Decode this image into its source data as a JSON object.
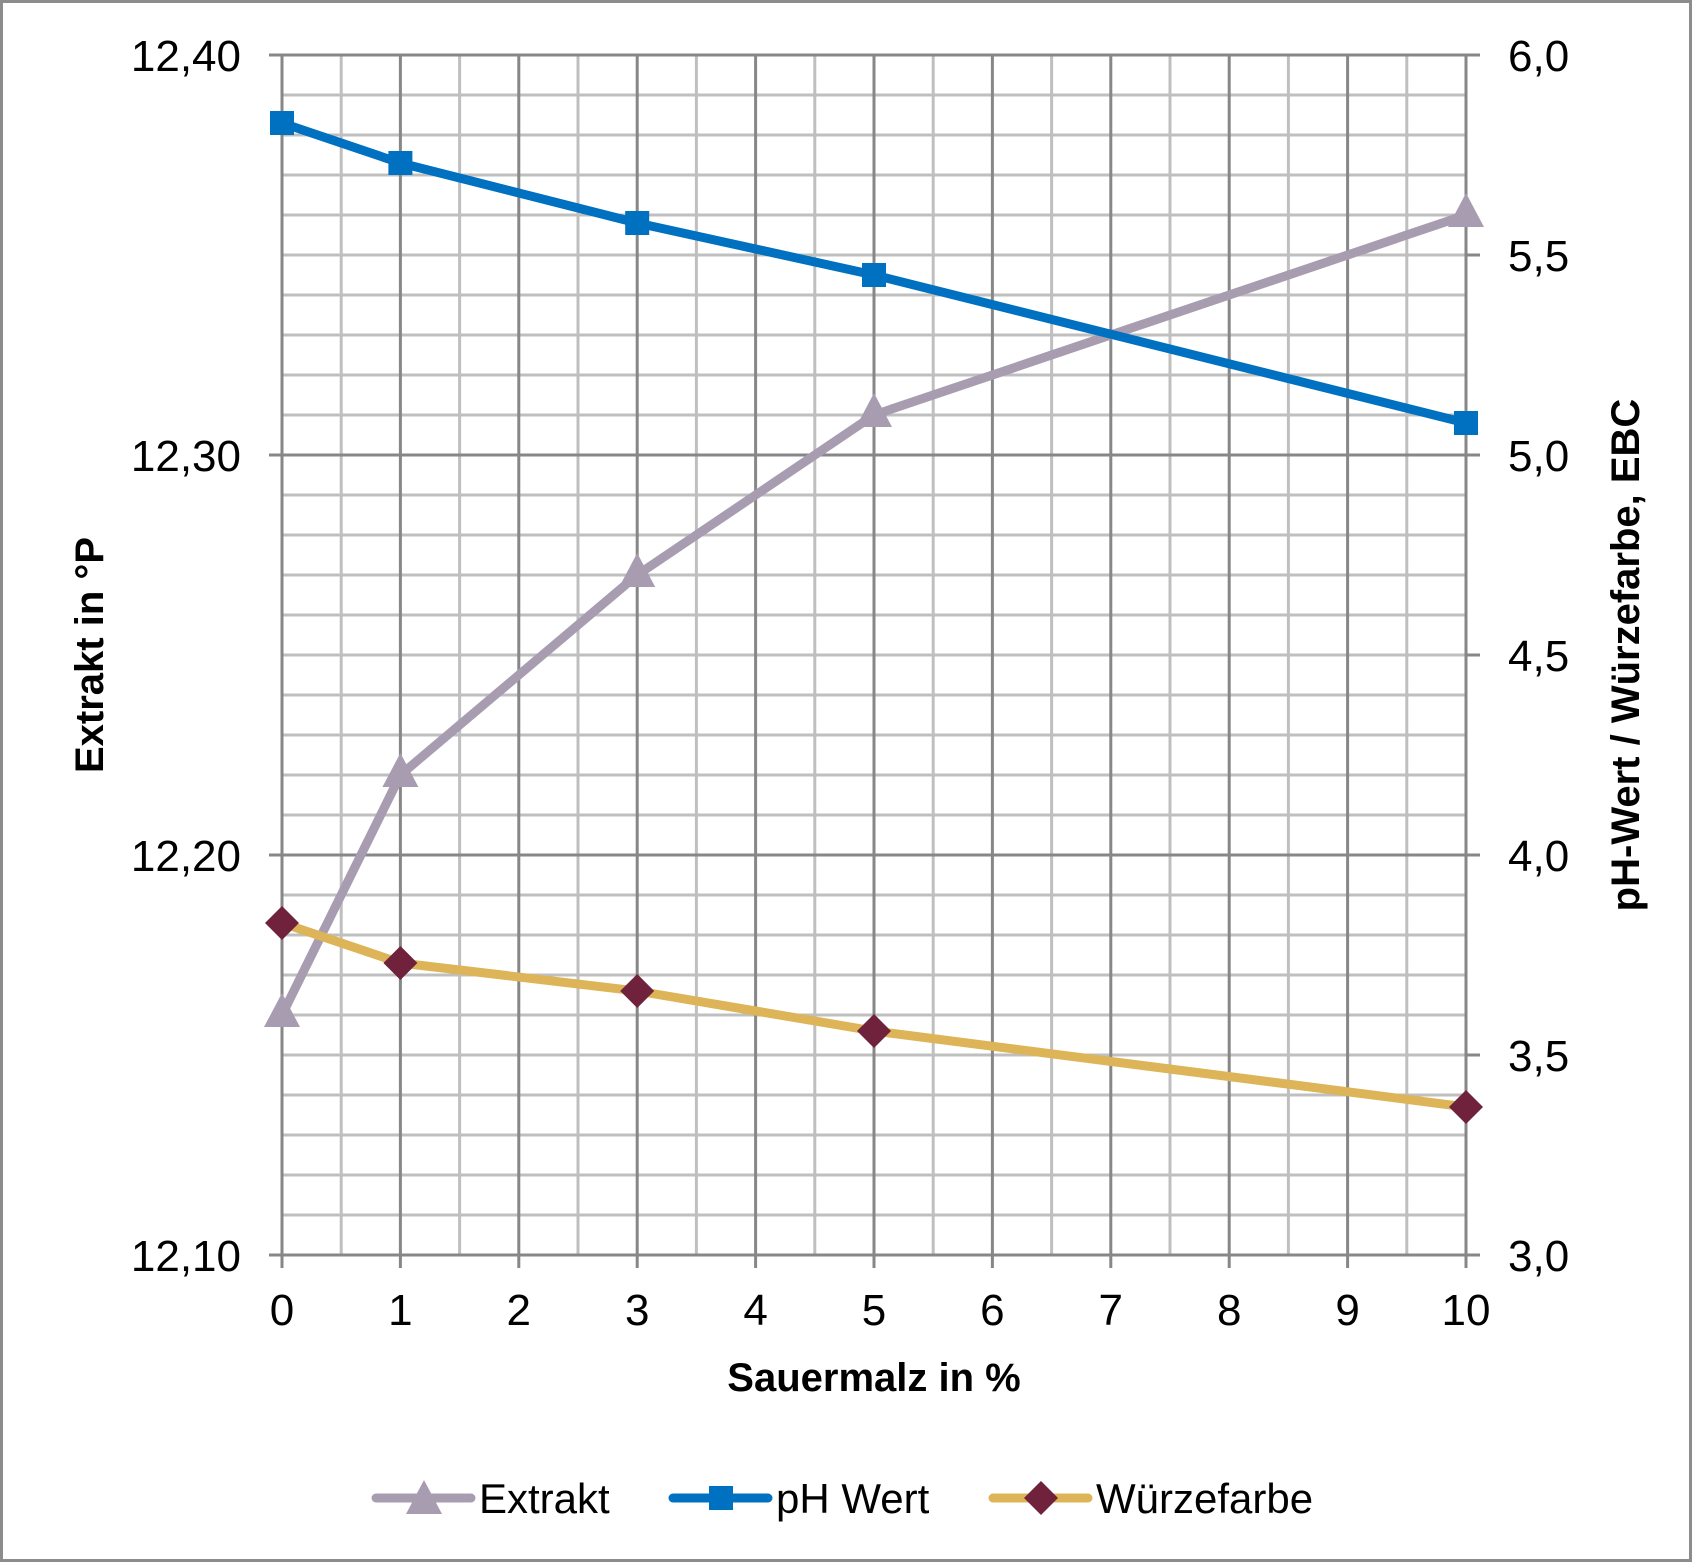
{
  "chart_data": {
    "type": "line",
    "title": "",
    "xlabel": "Sauermalz in %",
    "ylabel": "Extrakt in °P",
    "ylabel_right": "pH-Wert / Würzefarbe, EBC",
    "x": [
      0,
      1,
      3,
      5,
      10
    ],
    "xlim": [
      0,
      10
    ],
    "x_ticks": [
      "0",
      "1",
      "2",
      "3",
      "4",
      "5",
      "6",
      "7",
      "8",
      "9",
      "10"
    ],
    "ylim": [
      12.1,
      12.4
    ],
    "y_ticks": [
      "12,10",
      "12,20",
      "12,30",
      "12,40"
    ],
    "ylim_right": [
      3.0,
      6.0
    ],
    "y_ticks_right": [
      "3,0",
      "3,5",
      "4,0",
      "4,5",
      "5,0",
      "5,5",
      "6,0"
    ],
    "grid": true,
    "legend_position": "bottom",
    "series": [
      {
        "name": "Extrakt",
        "axis": "left",
        "marker": "triangle",
        "line_color": "#A89CB0",
        "marker_color": "#A89CB0",
        "values": [
          12.16,
          12.22,
          12.27,
          12.31,
          12.36
        ]
      },
      {
        "name": "pH Wert",
        "axis": "right",
        "marker": "square",
        "line_color": "#0070C0",
        "marker_color": "#0070C0",
        "values": [
          5.83,
          5.73,
          5.58,
          5.45,
          5.08
        ]
      },
      {
        "name": "Würzefarbe",
        "axis": "right",
        "marker": "diamond",
        "line_color": "#DDB457",
        "marker_color": "#70223C",
        "values": [
          3.83,
          3.73,
          3.66,
          3.56,
          3.37
        ]
      }
    ]
  }
}
